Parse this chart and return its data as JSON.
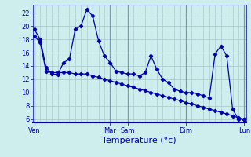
{
  "background_color": "#ceeeed",
  "grid_color": "#aacccc",
  "line_color": "#0000aa",
  "xlabel": "Température (°c)",
  "yticks": [
    6,
    8,
    10,
    12,
    14,
    16,
    18,
    20,
    22
  ],
  "ylim": [
    5.5,
    23.2
  ],
  "xlim": [
    -0.3,
    36.3
  ],
  "day_labels": [
    "Ven",
    "Mar",
    "Sam",
    "Dim",
    "Lun"
  ],
  "day_positions": [
    0,
    13,
    16,
    26,
    36
  ],
  "n_points": 37,
  "line1_y": [
    19.5,
    18.0,
    13.8,
    12.8,
    12.7,
    14.5,
    15.0,
    19.5,
    20.0,
    22.5,
    21.5,
    17.8,
    15.5,
    14.5,
    13.2,
    13.0,
    12.8,
    12.8,
    12.5,
    13.0,
    15.5,
    13.5,
    12.0,
    11.5,
    10.5,
    10.2,
    10.0,
    10.0,
    9.8,
    9.5,
    9.2,
    15.8,
    17.0,
    15.5,
    7.5,
    6.0,
    6.0
  ],
  "line2_y": [
    18.5,
    17.5,
    13.2,
    13.0,
    13.0,
    13.0,
    13.0,
    12.8,
    12.8,
    12.8,
    12.5,
    12.3,
    12.0,
    11.8,
    11.5,
    11.3,
    11.0,
    10.8,
    10.5,
    10.3,
    10.0,
    9.8,
    9.5,
    9.3,
    9.0,
    8.8,
    8.5,
    8.3,
    8.0,
    7.8,
    7.5,
    7.3,
    7.0,
    6.8,
    6.5,
    6.2,
    6.0
  ],
  "tick_fontsize": 6,
  "xlabel_fontsize": 8
}
